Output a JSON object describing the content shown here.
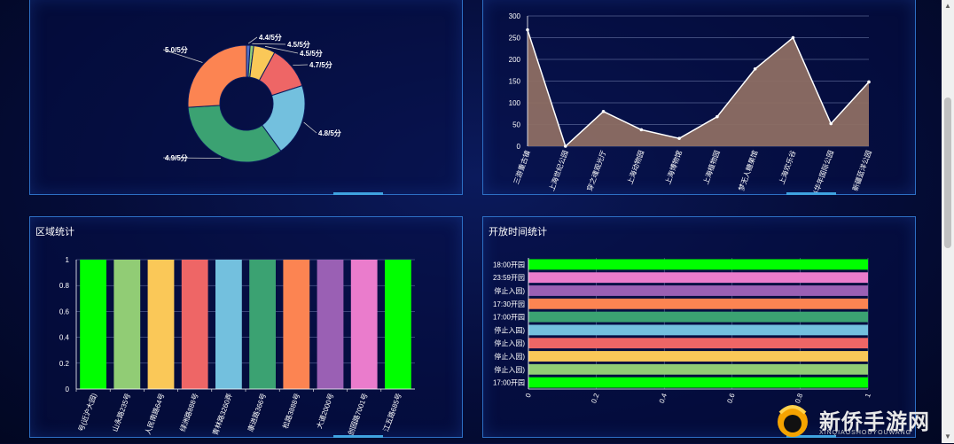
{
  "panels": {
    "bottom_left_title": "区域统计",
    "bottom_right_title": "开放时间统计"
  },
  "watermark": {
    "text": "新侨手游网",
    "sub": "XINQIAOSHOUYOUWANG"
  },
  "colors": {
    "palette": [
      "#00ff00",
      "#91cc75",
      "#fac858",
      "#ee6666",
      "#73c0de",
      "#3ba272",
      "#fc8452",
      "#9a60b4",
      "#ea7ccc",
      "#00ff00"
    ],
    "area_fill": "#8d6e63",
    "area_line": "#ffffff",
    "panel_border": "#2d6fc4"
  },
  "chart_data": [
    {
      "type": "pie",
      "donut": true,
      "slices": [
        {
          "label": "4.4/5分",
          "value": 1,
          "color": "#5470c6"
        },
        {
          "label": "4.5/5分",
          "value": 1,
          "color": "#91cc75"
        },
        {
          "label": "4.5/5分",
          "value": 6,
          "color": "#fac858"
        },
        {
          "label": "4.7/5分",
          "value": 12,
          "color": "#ee6666"
        },
        {
          "label": "4.8/5分",
          "value": 20,
          "color": "#73c0de"
        },
        {
          "label": "4.9/5分",
          "value": 34,
          "color": "#3ba272"
        },
        {
          "label": "5.0/5分",
          "value": 26,
          "color": "#fc8452"
        }
      ]
    },
    {
      "type": "area",
      "categories": [
        "三游重古镇",
        "上海世纪公园",
        "穿之魂观光厅",
        "上海动物园",
        "上海博物馆",
        "上海植物园",
        "梦无人糖果馆",
        "上海欢乐谷",
        "当华年国际公园",
        "新疆蓝洋公园"
      ],
      "values": [
        268,
        0,
        80,
        38,
        18,
        68,
        178,
        250,
        52,
        148
      ],
      "ylim": [
        0,
        300
      ],
      "yticks": [
        0,
        50,
        100,
        150,
        200,
        250,
        300
      ]
    },
    {
      "type": "bar",
      "categories": [
        "号(近沪大园)",
        "山永路235号",
        "人民南路64号",
        "绿洲路888号",
        "青林路3260弄",
        "康进路366号",
        "松路3888号",
        "大道2000号",
        "创园路7001号",
        "江五路685号"
      ],
      "values": [
        1,
        1,
        1,
        1,
        1,
        1,
        1,
        1,
        1,
        1
      ],
      "ylim": [
        0,
        1
      ],
      "yticks": [
        "0",
        "0.2",
        "0.4",
        "0.6",
        "0.8",
        "1"
      ]
    },
    {
      "type": "bar",
      "orientation": "horizontal",
      "categories": [
        "17:00开园",
        "停止入园)",
        "停止入园)",
        "停止入园)",
        "停止入园)",
        "17:00开园",
        "17:30开园",
        "停止入园)",
        "23:59开园",
        "18:00开园"
      ],
      "values": [
        1,
        1,
        1,
        1,
        1,
        1,
        1,
        1,
        1,
        1
      ],
      "xlim": [
        0,
        1
      ],
      "xticks": [
        "0",
        "0.2",
        "0.4",
        "0.6",
        "0.8",
        "1"
      ]
    }
  ]
}
